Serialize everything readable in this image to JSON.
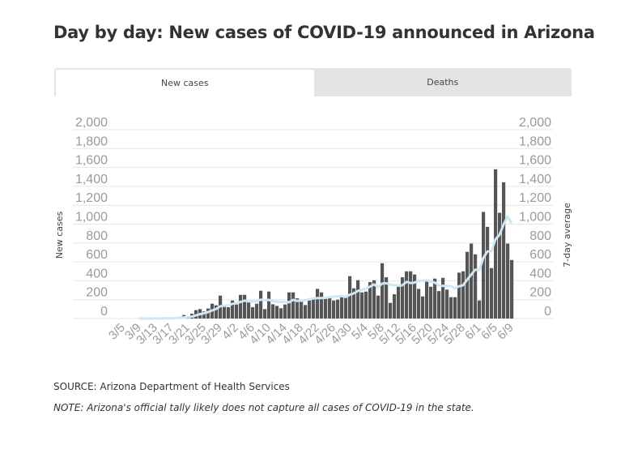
{
  "header": {
    "title": "Day by day: New cases of COVID-19 announced in Arizona"
  },
  "tabs": [
    {
      "label": "New cases",
      "active": true
    },
    {
      "label": "Deaths",
      "active": false
    }
  ],
  "footer": {
    "source": "SOURCE: Arizona Department of Health Services",
    "note": "NOTE: Arizona's official tally likely does not capture all cases of COVID-19 in the state."
  },
  "chart_data": {
    "type": "bar",
    "title": "",
    "ylabel": "New cases",
    "y2label": "7-day average",
    "ylim": [
      0,
      2000
    ],
    "y2lim": [
      0,
      2000
    ],
    "yticks": [
      "0",
      "200",
      "400",
      "600",
      "800",
      "1,000",
      "1,200",
      "1,400",
      "1,600",
      "1,800",
      "2,000"
    ],
    "ytick_values": [
      0,
      200,
      400,
      600,
      800,
      1000,
      1200,
      1400,
      1600,
      1800,
      2000
    ],
    "xticks": [
      "3/5",
      "3/9",
      "3/13",
      "3/17",
      "3/21",
      "3/25",
      "3/29",
      "4/2",
      "4/6",
      "4/10",
      "4/14",
      "4/18",
      "4/22",
      "4/26",
      "4/30",
      "5/4",
      "5/8",
      "5/12",
      "5/16",
      "5/20",
      "5/24",
      "5/28",
      "6/1",
      "6/5",
      "6/9"
    ],
    "start_date": "3/5",
    "end_date": "6/9",
    "grid": true,
    "colors": {
      "bars": "#555555",
      "average_line": "#cfe6f3",
      "grid": "#e6e6e6",
      "ticks": "#9a9a9a"
    },
    "series": [
      {
        "name": "New cases",
        "type": "bar",
        "values": [
          0,
          0,
          0,
          0,
          1,
          0,
          1,
          2,
          3,
          1,
          6,
          2,
          6,
          12,
          18,
          37,
          20,
          51,
          89,
          100,
          75,
          106,
          157,
          140,
          243,
          129,
          120,
          191,
          149,
          251,
          251,
          177,
          120,
          157,
          294,
          100,
          286,
          151,
          134,
          109,
          149,
          277,
          277,
          214,
          177,
          143,
          191,
          206,
          314,
          277,
          223,
          229,
          191,
          200,
          237,
          237,
          449,
          320,
          406,
          277,
          286,
          386,
          406,
          243,
          586,
          437,
          166,
          257,
          337,
          437,
          500,
          500,
          466,
          314,
          234,
          391,
          337,
          423,
          291,
          431,
          306,
          226,
          226,
          486,
          500,
          706,
          794,
          680,
          191,
          1129,
          971,
          534,
          1580,
          1120,
          1443,
          794,
          620
        ]
      },
      {
        "name": "7-day average",
        "type": "line",
        "window": 7
      }
    ]
  }
}
